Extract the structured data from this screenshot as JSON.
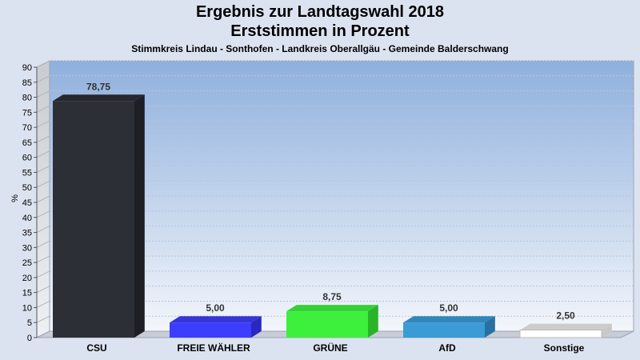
{
  "header": {
    "title_line1": "Ergebnis zur Landtagswahl 2018",
    "title_line2": "Erststimmen in Prozent",
    "subtitle": "Stimmkreis Lindau - Sonthofen - Landkreis Oberallgäu - Gemeinde Balderschwang"
  },
  "chart_data": {
    "type": "bar",
    "title": "Ergebnis zur Landtagswahl 2018 / Erststimmen in Prozent",
    "subtitle": "Stimmkreis Lindau - Sonthofen - Landkreis Oberallgäu - Gemeinde Balderschwang",
    "xlabel": "",
    "ylabel": "%",
    "ylim": [
      0,
      90
    ],
    "yticks": [
      0,
      5,
      10,
      15,
      20,
      25,
      30,
      35,
      40,
      45,
      50,
      55,
      60,
      65,
      70,
      75,
      80,
      85,
      90
    ],
    "grid": true,
    "categories": [
      "CSU",
      "FREIE WÄHLER",
      "GRÜNE",
      "AfD",
      "Sonstige"
    ],
    "values": [
      78.75,
      5.0,
      8.75,
      5.0,
      2.5
    ],
    "value_labels": [
      "78,75",
      "5,00",
      "8,75",
      "5,00",
      "2,50"
    ],
    "colors": [
      "#2d2f36",
      "#3d3dff",
      "#3cf03c",
      "#3a9bd5",
      "#ffffff"
    ],
    "side_colors": [
      "#1d1f24",
      "#2828c0",
      "#28b428",
      "#2870a0",
      "#c8c8c8"
    ],
    "top_colors": [
      "#26282e",
      "#3535d8",
      "#35d035",
      "#3287b8",
      "#cccccc"
    ]
  }
}
